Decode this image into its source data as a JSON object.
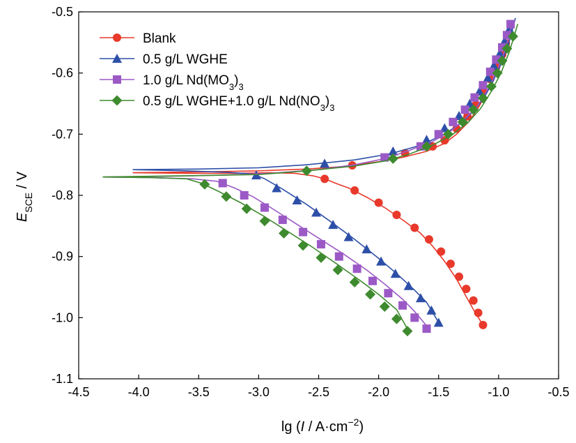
{
  "chart_data": {
    "type": "line",
    "xlabel": "lg (I / A·cm−2)",
    "xlabel_parts": {
      "prefix": "lg (",
      "italic": "I",
      "mid": " / A·cm",
      "sup": "−2",
      "suffix": ")"
    },
    "ylabel": "ESCE / V",
    "ylabel_parts": {
      "italic": "E",
      "sub": "SCE",
      "suffix": " / V"
    },
    "xlim": [
      -4.5,
      -0.5
    ],
    "ylim": [
      -1.1,
      -0.5
    ],
    "x_ticks": [
      -4.5,
      -4.0,
      -3.5,
      -3.0,
      -2.5,
      -2.0,
      -1.5,
      -1.0,
      -0.5
    ],
    "x_tick_labels": [
      "-4.5",
      "-4.0",
      "-3.5",
      "-3.0",
      "-2.5",
      "-2.0",
      "-1.5",
      "-1.0",
      "-0.5"
    ],
    "y_ticks": [
      -0.5,
      -0.6,
      -0.7,
      -0.8,
      -0.9,
      -1.0,
      -1.1
    ],
    "y_tick_labels": [
      "-0.5",
      "-0.6",
      "-0.7",
      "-0.8",
      "-0.9",
      "-1.0",
      "-1.1"
    ],
    "grid": false,
    "legend_position": "top-left",
    "series": [
      {
        "name": "Blank",
        "label_parts": [
          {
            "t": "Blank"
          }
        ],
        "color": "#e8392b",
        "marker": "circle",
        "line": [
          [
            -4.05,
            -0.763
          ],
          [
            -3.6,
            -0.764
          ],
          [
            -3.2,
            -0.764
          ],
          [
            -2.9,
            -0.763
          ],
          [
            -2.7,
            -0.764
          ],
          [
            -2.55,
            -0.768
          ],
          [
            -2.45,
            -0.773
          ],
          [
            -2.35,
            -0.781
          ],
          [
            -2.25,
            -0.788
          ],
          [
            -2.1,
            -0.803
          ],
          [
            -1.95,
            -0.82
          ],
          [
            -1.8,
            -0.84
          ],
          [
            -1.65,
            -0.862
          ],
          [
            -1.55,
            -0.883
          ],
          [
            -1.45,
            -0.908
          ],
          [
            -1.35,
            -0.937
          ],
          [
            -1.28,
            -0.962
          ],
          [
            -1.2,
            -0.99
          ],
          [
            -1.13,
            -1.012
          ],
          null,
          [
            -4.05,
            -0.763
          ],
          [
            -3.6,
            -0.762
          ],
          [
            -3.0,
            -0.76
          ],
          [
            -2.6,
            -0.757
          ],
          [
            -2.3,
            -0.753
          ],
          [
            -2.0,
            -0.745
          ],
          [
            -1.8,
            -0.738
          ],
          [
            -1.6,
            -0.728
          ],
          [
            -1.45,
            -0.715
          ],
          [
            -1.35,
            -0.7
          ],
          [
            -1.25,
            -0.68
          ],
          [
            -1.18,
            -0.66
          ],
          [
            -1.12,
            -0.64
          ],
          [
            -1.06,
            -0.615
          ],
          [
            -1.0,
            -0.59
          ],
          [
            -0.95,
            -0.565
          ],
          [
            -0.9,
            -0.54
          ]
        ],
        "markers": [
          [
            -2.45,
            -0.773
          ],
          [
            -2.2,
            -0.792
          ],
          [
            -2.0,
            -0.812
          ],
          [
            -1.85,
            -0.832
          ],
          [
            -1.7,
            -0.853
          ],
          [
            -1.58,
            -0.872
          ],
          [
            -1.48,
            -0.892
          ],
          [
            -1.4,
            -0.912
          ],
          [
            -1.33,
            -0.933
          ],
          [
            -1.27,
            -0.953
          ],
          [
            -1.21,
            -0.972
          ],
          [
            -1.17,
            -0.992
          ],
          [
            -1.13,
            -1.012
          ],
          [
            -2.22,
            -0.751
          ],
          [
            -1.78,
            -0.731
          ],
          [
            -1.55,
            -0.72
          ],
          [
            -1.45,
            -0.71
          ],
          [
            -1.35,
            -0.691
          ],
          [
            -1.26,
            -0.671
          ],
          [
            -1.19,
            -0.652
          ],
          [
            -1.13,
            -0.631
          ],
          [
            -1.07,
            -0.61
          ],
          [
            -1.02,
            -0.59
          ],
          [
            -0.97,
            -0.57
          ],
          [
            -0.94,
            -0.552
          ]
        ]
      },
      {
        "name": "0.5 g/L WGHE",
        "label_parts": [
          {
            "t": "0.5 g/L WGHE"
          }
        ],
        "color": "#2d4fa8",
        "marker": "triangle",
        "line": [
          [
            -4.05,
            -0.758
          ],
          [
            -3.6,
            -0.76
          ],
          [
            -3.3,
            -0.762
          ],
          [
            -3.05,
            -0.765
          ],
          [
            -2.95,
            -0.773
          ],
          [
            -2.8,
            -0.79
          ],
          [
            -2.6,
            -0.815
          ],
          [
            -2.4,
            -0.843
          ],
          [
            -2.2,
            -0.872
          ],
          [
            -2.0,
            -0.903
          ],
          [
            -1.85,
            -0.928
          ],
          [
            -1.7,
            -0.955
          ],
          [
            -1.6,
            -0.975
          ],
          [
            -1.5,
            -1.008
          ],
          null,
          [
            -4.05,
            -0.758
          ],
          [
            -3.5,
            -0.757
          ],
          [
            -3.0,
            -0.755
          ],
          [
            -2.6,
            -0.75
          ],
          [
            -2.2,
            -0.742
          ],
          [
            -1.9,
            -0.732
          ],
          [
            -1.65,
            -0.718
          ],
          [
            -1.45,
            -0.7
          ],
          [
            -1.3,
            -0.68
          ],
          [
            -1.2,
            -0.66
          ],
          [
            -1.12,
            -0.64
          ],
          [
            -1.05,
            -0.615
          ],
          [
            -0.98,
            -0.585
          ],
          [
            -0.92,
            -0.555
          ],
          [
            -0.86,
            -0.51
          ]
        ],
        "markers": [
          [
            -3.02,
            -0.767
          ],
          [
            -2.85,
            -0.788
          ],
          [
            -2.68,
            -0.808
          ],
          [
            -2.52,
            -0.828
          ],
          [
            -2.38,
            -0.848
          ],
          [
            -2.25,
            -0.868
          ],
          [
            -2.1,
            -0.888
          ],
          [
            -1.98,
            -0.908
          ],
          [
            -1.86,
            -0.928
          ],
          [
            -1.75,
            -0.948
          ],
          [
            -1.65,
            -0.968
          ],
          [
            -1.56,
            -0.988
          ],
          [
            -1.5,
            -1.008
          ],
          [
            -2.45,
            -0.748
          ],
          [
            -1.88,
            -0.728
          ],
          [
            -1.6,
            -0.709
          ],
          [
            -1.45,
            -0.69
          ],
          [
            -1.33,
            -0.67
          ],
          [
            -1.24,
            -0.65
          ],
          [
            -1.16,
            -0.63
          ],
          [
            -1.09,
            -0.608
          ],
          [
            -1.04,
            -0.588
          ],
          [
            -0.99,
            -0.568
          ],
          [
            -0.95,
            -0.548
          ],
          [
            -0.91,
            -0.528
          ]
        ]
      },
      {
        "name": "1.0 g/L Nd(MO3)3",
        "label_parts": [
          {
            "t": "1.0 g/L Nd(MO"
          },
          {
            "t": "3",
            "sub": true
          },
          {
            "t": ")"
          },
          {
            "t": "3",
            "sub": true
          }
        ],
        "color": "#9b59c6",
        "marker": "square",
        "line": [
          [
            -4.3,
            -0.77
          ],
          [
            -3.9,
            -0.771
          ],
          [
            -3.55,
            -0.773
          ],
          [
            -3.35,
            -0.777
          ],
          [
            -3.2,
            -0.788
          ],
          [
            -3.05,
            -0.802
          ],
          [
            -2.9,
            -0.82
          ],
          [
            -2.7,
            -0.845
          ],
          [
            -2.5,
            -0.87
          ],
          [
            -2.3,
            -0.895
          ],
          [
            -2.1,
            -0.922
          ],
          [
            -1.95,
            -0.945
          ],
          [
            -1.8,
            -0.97
          ],
          [
            -1.7,
            -0.99
          ],
          [
            -1.58,
            -1.018
          ],
          null,
          [
            -4.3,
            -0.77
          ],
          [
            -3.8,
            -0.769
          ],
          [
            -3.3,
            -0.767
          ],
          [
            -2.9,
            -0.764
          ],
          [
            -2.5,
            -0.758
          ],
          [
            -2.2,
            -0.75
          ],
          [
            -1.95,
            -0.74
          ],
          [
            -1.75,
            -0.727
          ],
          [
            -1.55,
            -0.712
          ],
          [
            -1.4,
            -0.695
          ],
          [
            -1.28,
            -0.675
          ],
          [
            -1.18,
            -0.655
          ],
          [
            -1.1,
            -0.63
          ],
          [
            -1.02,
            -0.6
          ],
          [
            -0.95,
            -0.565
          ],
          [
            -0.88,
            -0.515
          ]
        ],
        "markers": [
          [
            -3.3,
            -0.78
          ],
          [
            -3.12,
            -0.8
          ],
          [
            -2.95,
            -0.82
          ],
          [
            -2.8,
            -0.84
          ],
          [
            -2.63,
            -0.86
          ],
          [
            -2.48,
            -0.88
          ],
          [
            -2.33,
            -0.9
          ],
          [
            -2.18,
            -0.92
          ],
          [
            -2.05,
            -0.94
          ],
          [
            -1.92,
            -0.96
          ],
          [
            -1.8,
            -0.98
          ],
          [
            -1.7,
            -1.0
          ],
          [
            -1.6,
            -1.018
          ],
          [
            -1.95,
            -0.738
          ],
          [
            -1.65,
            -0.72
          ],
          [
            -1.5,
            -0.7
          ],
          [
            -1.38,
            -0.68
          ],
          [
            -1.28,
            -0.66
          ],
          [
            -1.2,
            -0.64
          ],
          [
            -1.13,
            -0.62
          ],
          [
            -1.07,
            -0.598
          ],
          [
            -1.02,
            -0.578
          ],
          [
            -0.97,
            -0.558
          ],
          [
            -0.93,
            -0.538
          ],
          [
            -0.9,
            -0.52
          ]
        ]
      },
      {
        "name": "0.5 g/L WGHE+1.0 g/L Nd(NO3)3",
        "label_parts": [
          {
            "t": "0.5 g/L WGHE+1.0 g/L Nd(NO"
          },
          {
            "t": "3",
            "sub": true
          },
          {
            "t": ")"
          },
          {
            "t": "3",
            "sub": true
          }
        ],
        "color": "#3e8a2e",
        "marker": "diamond",
        "line": [
          [
            -4.3,
            -0.77
          ],
          [
            -3.9,
            -0.771
          ],
          [
            -3.6,
            -0.773
          ],
          [
            -3.48,
            -0.78
          ],
          [
            -3.35,
            -0.792
          ],
          [
            -3.15,
            -0.812
          ],
          [
            -2.95,
            -0.835
          ],
          [
            -2.75,
            -0.86
          ],
          [
            -2.55,
            -0.885
          ],
          [
            -2.35,
            -0.912
          ],
          [
            -2.15,
            -0.94
          ],
          [
            -2.0,
            -0.962
          ],
          [
            -1.85,
            -0.987
          ],
          [
            -1.75,
            -1.022
          ],
          null,
          [
            -4.3,
            -0.77
          ],
          [
            -3.6,
            -0.768
          ],
          [
            -3.0,
            -0.766
          ],
          [
            -2.6,
            -0.76
          ],
          [
            -2.2,
            -0.752
          ],
          [
            -1.95,
            -0.744
          ],
          [
            -1.75,
            -0.733
          ],
          [
            -1.55,
            -0.718
          ],
          [
            -1.38,
            -0.7
          ],
          [
            -1.25,
            -0.68
          ],
          [
            -1.15,
            -0.658
          ],
          [
            -1.06,
            -0.63
          ],
          [
            -0.98,
            -0.6
          ],
          [
            -0.91,
            -0.565
          ],
          [
            -0.84,
            -0.52
          ]
        ],
        "markers": [
          [
            -3.45,
            -0.782
          ],
          [
            -3.27,
            -0.802
          ],
          [
            -3.1,
            -0.822
          ],
          [
            -2.95,
            -0.842
          ],
          [
            -2.79,
            -0.862
          ],
          [
            -2.63,
            -0.882
          ],
          [
            -2.48,
            -0.902
          ],
          [
            -2.34,
            -0.922
          ],
          [
            -2.2,
            -0.942
          ],
          [
            -2.07,
            -0.962
          ],
          [
            -1.95,
            -0.982
          ],
          [
            -1.85,
            -1.002
          ],
          [
            -1.76,
            -1.022
          ],
          [
            -2.6,
            -0.76
          ],
          [
            -1.88,
            -0.74
          ],
          [
            -1.6,
            -0.72
          ],
          [
            -1.42,
            -0.7
          ],
          [
            -1.3,
            -0.68
          ],
          [
            -1.21,
            -0.66
          ],
          [
            -1.13,
            -0.641
          ],
          [
            -1.06,
            -0.622
          ],
          [
            -1.01,
            -0.6
          ],
          [
            -0.97,
            -0.58
          ],
          [
            -0.93,
            -0.56
          ],
          [
            -0.88,
            -0.54
          ]
        ]
      }
    ]
  }
}
